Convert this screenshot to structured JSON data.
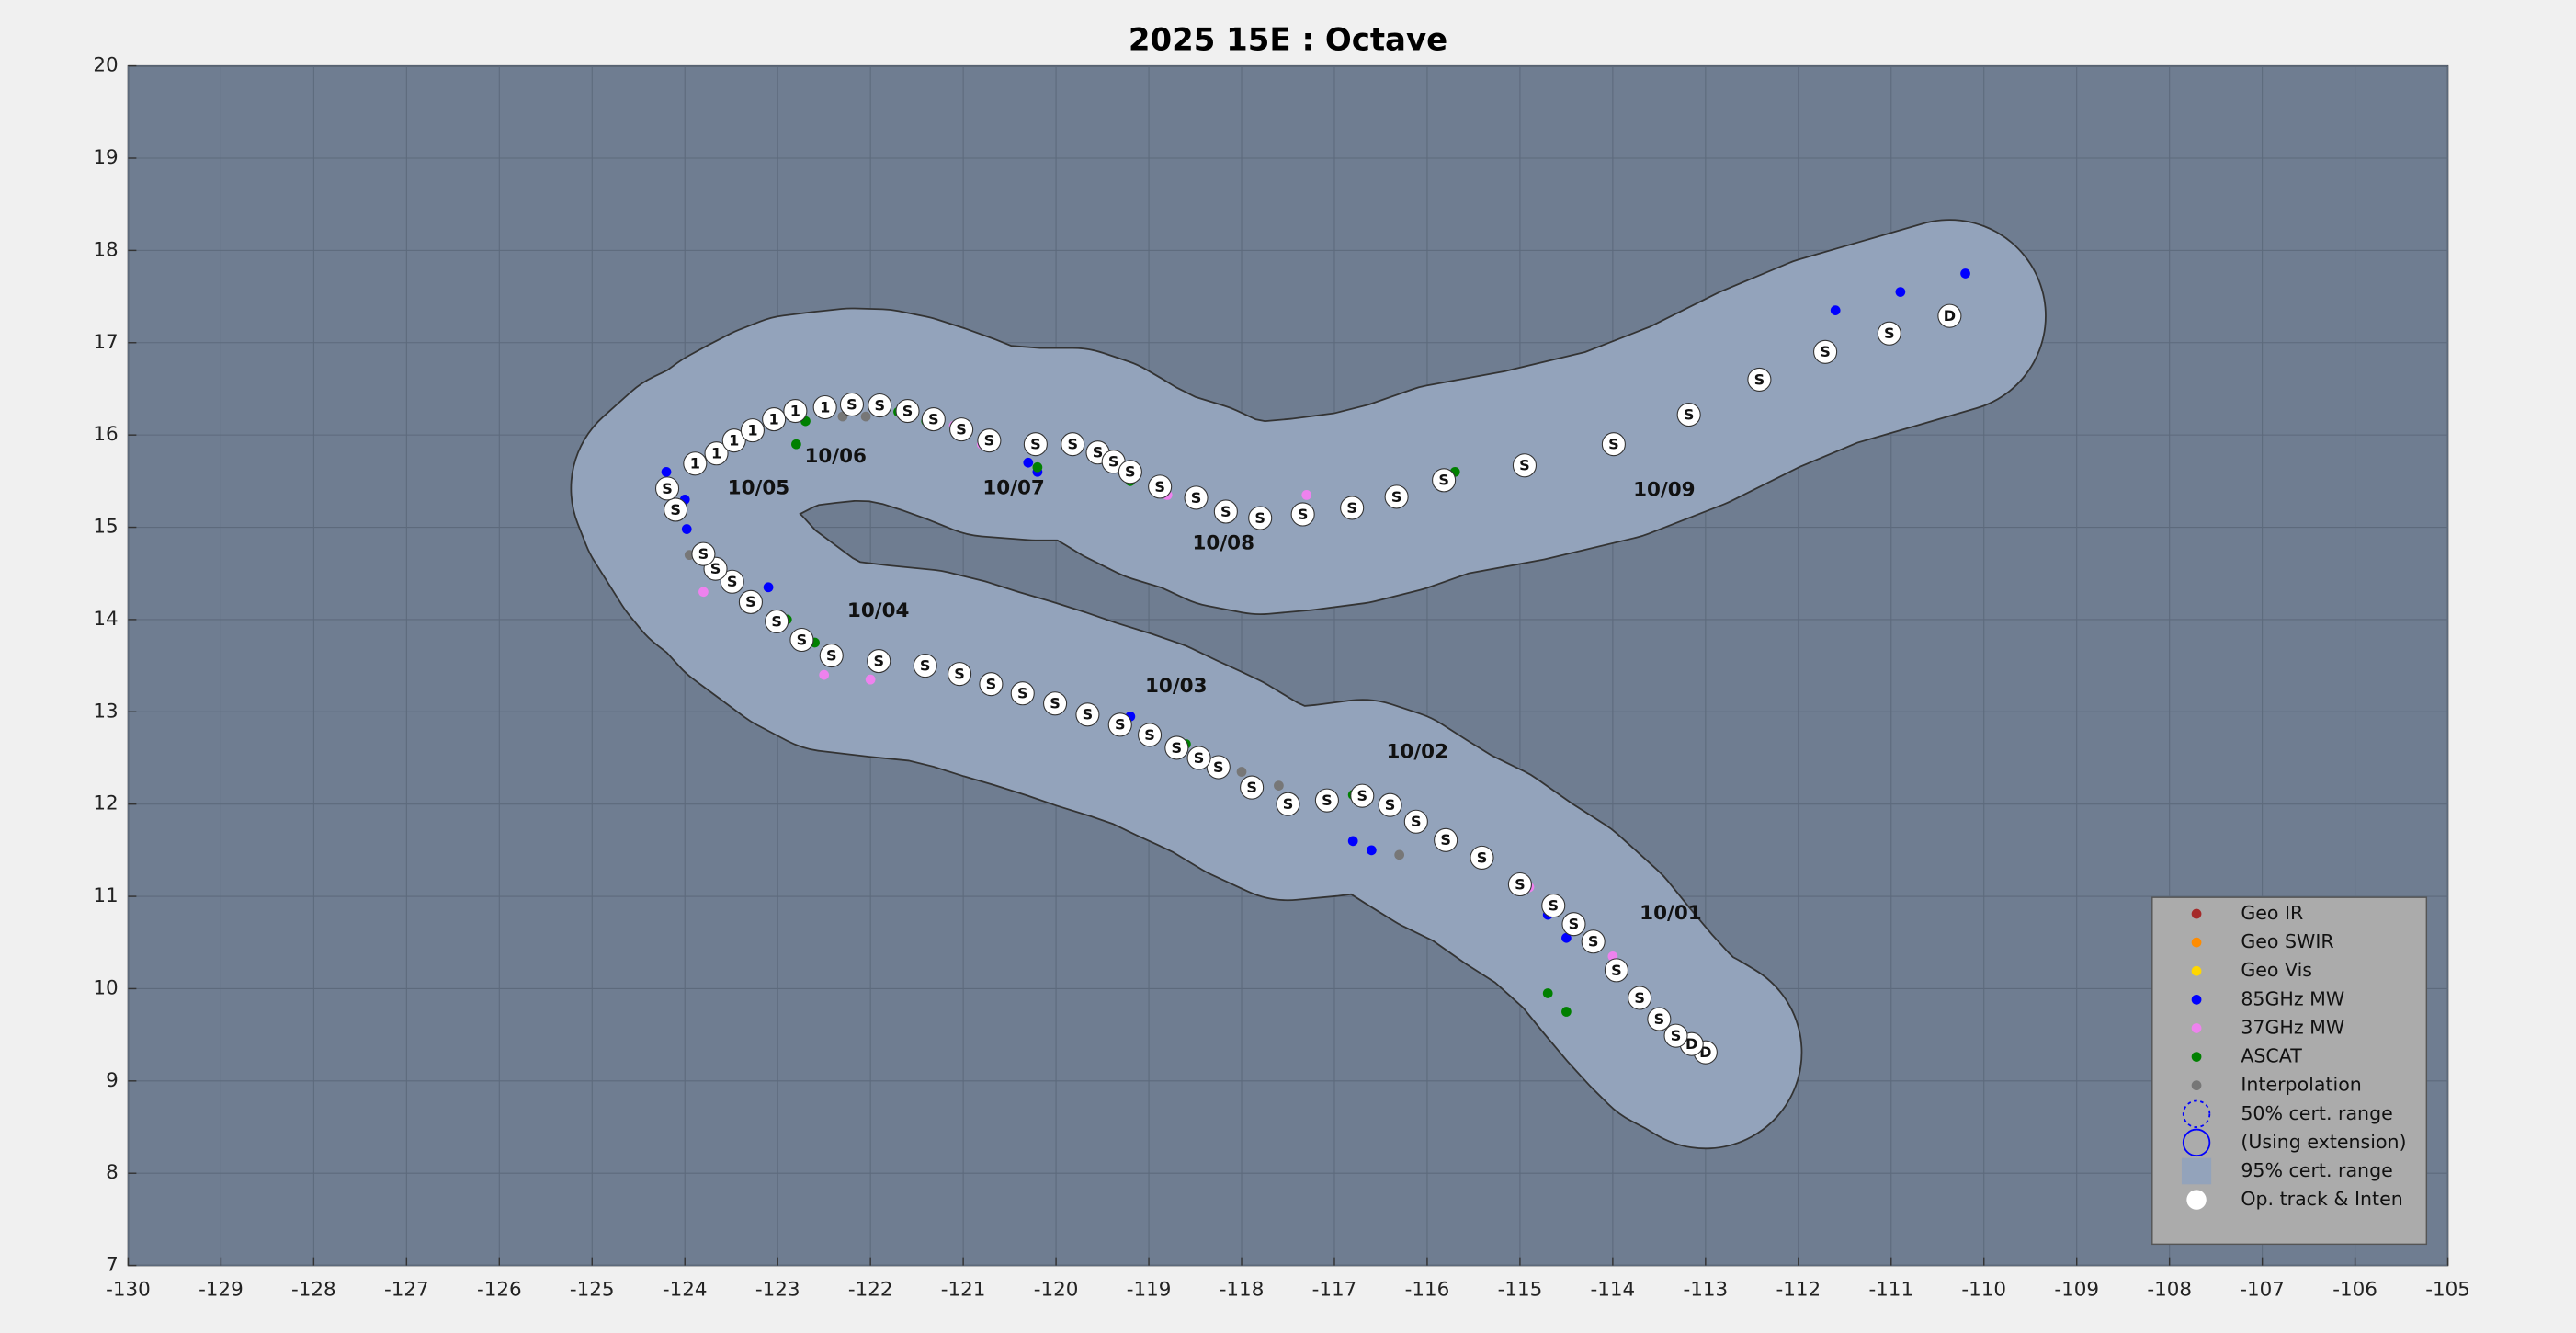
{
  "chart_data": {
    "type": "scatter",
    "title": "2025  15E :  Octave",
    "xlim": [
      -130,
      -105
    ],
    "xticks": [
      -130,
      -129,
      -128,
      -127,
      -126,
      -125,
      -124,
      -123,
      -122,
      -121,
      -120,
      -119,
      -118,
      -117,
      -116,
      -115,
      -114,
      -113,
      -112,
      -111,
      -110,
      -109,
      -108,
      -107,
      -106,
      -105
    ],
    "ylim": [
      7,
      20
    ],
    "yticks": [
      7,
      8,
      9,
      10,
      11,
      12,
      13,
      14,
      15,
      16,
      17,
      18,
      19,
      20
    ],
    "grid": true,
    "legend": "lower right",
    "series": [
      {
        "name": "Geo IR",
        "color": "#a52a2a",
        "x": [],
        "y": []
      },
      {
        "name": "Geo SWIR",
        "color": "#ff8c00",
        "x": [],
        "y": []
      },
      {
        "name": "Geo Vis",
        "color": "#ffd700",
        "x": [],
        "y": []
      },
      {
        "name": "85GHz MW",
        "color": "#0000ff",
        "x": [
          -124.2,
          -124.0,
          -123.98,
          -123.1,
          -123.0,
          -120.3,
          -120.2,
          -119.2,
          -116.8,
          -116.6,
          -115.8,
          -114.7,
          -114.5,
          -111.6,
          -110.9,
          -110.2
        ],
        "y": [
          15.6,
          15.3,
          14.98,
          14.35,
          16.2,
          15.7,
          15.6,
          12.95,
          11.6,
          11.5,
          11.6,
          10.8,
          10.55,
          17.35,
          17.55,
          17.75
        ]
      },
      {
        "name": "37GHz MW",
        "color": "#ee82ee",
        "x": [
          -123.8,
          -122.5,
          -122.0,
          -121.1,
          -120.8,
          -118.8,
          -117.3,
          -114.9,
          -114.0
        ],
        "y": [
          14.3,
          13.4,
          13.35,
          16.1,
          15.9,
          15.35,
          15.35,
          11.1,
          10.35
        ]
      },
      {
        "name": "ASCAT",
        "color": "#008000",
        "x": [
          -122.9,
          -122.6,
          -122.7,
          -122.8,
          -121.7,
          -121.4,
          -120.2,
          -119.2,
          -120.0,
          -119.6,
          -118.6,
          -118.4,
          -117.1,
          -116.8,
          -116.3,
          -115.7,
          -114.7,
          -114.5
        ],
        "y": [
          14.0,
          13.75,
          16.15,
          15.9,
          16.25,
          16.15,
          15.65,
          15.5,
          13.1,
          12.95,
          12.65,
          12.5,
          12.05,
          12.1,
          15.35,
          15.6,
          9.95,
          9.75
        ]
      },
      {
        "name": "Interpolation",
        "color": "#777777",
        "x": [
          -123.95,
          -122.3,
          -122.05,
          -118.0,
          -117.6,
          -116.3,
          -119.0
        ],
        "y": [
          14.7,
          16.2,
          16.2,
          12.35,
          12.2,
          11.45,
          12.75
        ]
      }
    ],
    "extra_legend": [
      {
        "name": "50% cert. range",
        "color": "#0000ff",
        "symbol": "dashed-circle"
      },
      {
        "name": "(Using extension)",
        "color": "#0000ff",
        "symbol": "circle"
      },
      {
        "name": "95% cert. range",
        "color": "#93a3bb",
        "symbol": "square"
      }
    ],
    "track": {
      "name": "Op. track & Inten",
      "color": "#ffffff",
      "x": [
        -113.0,
        -113.15,
        -113.32,
        -113.5,
        -113.71,
        -113.96,
        -114.21,
        -114.42,
        -114.64,
        -115.0,
        -115.41,
        -115.8,
        -116.12,
        -116.4,
        -116.7,
        -117.08,
        -117.5,
        -117.89,
        -118.25,
        -118.46,
        -118.7,
        -118.99,
        -119.31,
        -119.66,
        -120.01,
        -120.36,
        -120.7,
        -121.04,
        -121.41,
        -121.91,
        -122.42,
        -122.74,
        -123.01,
        -123.29,
        -123.49,
        -123.67,
        -123.8,
        -124.1,
        -124.19,
        -123.89,
        -123.66,
        -123.47,
        -123.27,
        -123.04,
        -122.81,
        -122.49,
        -122.2,
        -121.9,
        -121.6,
        -121.32,
        -121.02,
        -120.72,
        -120.22,
        -119.82,
        -119.55,
        -119.38,
        -119.2,
        -118.88,
        -118.49,
        -118.17,
        -117.8,
        -117.34,
        -116.81,
        -116.33,
        -115.82,
        -114.95,
        -113.99,
        -113.18,
        -112.42,
        -111.71,
        -111.02,
        -110.37
      ],
      "y": [
        9.31,
        9.4,
        9.49,
        9.67,
        9.9,
        10.2,
        10.51,
        10.7,
        10.9,
        11.13,
        11.42,
        11.61,
        11.81,
        11.99,
        12.09,
        12.04,
        12.0,
        12.18,
        12.4,
        12.5,
        12.61,
        12.75,
        12.86,
        12.97,
        13.09,
        13.2,
        13.3,
        13.41,
        13.5,
        13.55,
        13.61,
        13.78,
        13.98,
        14.19,
        14.41,
        14.55,
        14.71,
        15.19,
        15.42,
        15.69,
        15.8,
        15.94,
        16.05,
        16.17,
        16.26,
        16.3,
        16.33,
        16.32,
        16.26,
        16.17,
        16.06,
        15.94,
        15.9,
        15.9,
        15.81,
        15.71,
        15.6,
        15.44,
        15.32,
        15.17,
        15.1,
        15.14,
        15.21,
        15.33,
        15.51,
        15.67,
        15.9,
        16.22,
        16.6,
        16.9,
        17.1,
        17.29
      ],
      "labels": [
        "D",
        "D",
        "S",
        "S",
        "S",
        "S",
        "S",
        "S",
        "S",
        "S",
        "S",
        "S",
        "S",
        "S",
        "S",
        "S",
        "S",
        "S",
        "S",
        "S",
        "S",
        "S",
        "S",
        "S",
        "S",
        "S",
        "S",
        "S",
        "S",
        "S",
        "S",
        "S",
        "S",
        "S",
        "S",
        "S",
        "S",
        "S",
        "S",
        "1",
        "1",
        "1",
        "1",
        "1",
        "1",
        "1",
        "S",
        "S",
        "S",
        "S",
        "S",
        "S",
        "S",
        "S",
        "S",
        "S",
        "S",
        "S",
        "S",
        "S",
        "S",
        "S",
        "S",
        "S",
        "S",
        "S",
        "S",
        "S",
        "S",
        "S",
        "S",
        "D"
      ]
    },
    "date_labels": [
      {
        "text": "10/01",
        "lon": -113.71,
        "lat": 10.81
      },
      {
        "text": "10/02",
        "lon": -116.44,
        "lat": 12.56
      },
      {
        "text": "10/03",
        "lon": -119.04,
        "lat": 13.27
      },
      {
        "text": "10/04",
        "lon": -122.25,
        "lat": 14.09
      },
      {
        "text": "10/05",
        "lon": -123.54,
        "lat": 15.42
      },
      {
        "text": "10/06",
        "lon": -122.71,
        "lat": 15.76
      },
      {
        "text": "10/07",
        "lon": -120.79,
        "lat": 15.42
      },
      {
        "text": "10/08",
        "lon": -118.53,
        "lat": 14.82
      },
      {
        "text": "10/09",
        "lon": -113.78,
        "lat": 15.4
      }
    ]
  }
}
